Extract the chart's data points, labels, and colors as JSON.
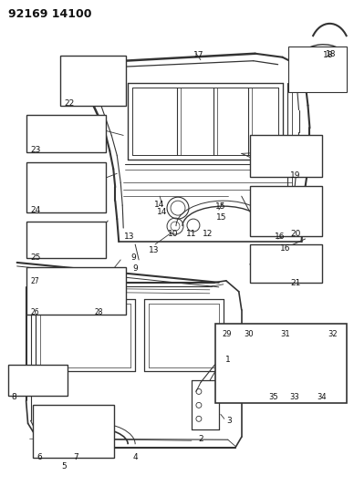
{
  "title": "92169 14100",
  "bg_color": "#ffffff",
  "fig_width": 3.88,
  "fig_height": 5.33,
  "dpi": 100
}
